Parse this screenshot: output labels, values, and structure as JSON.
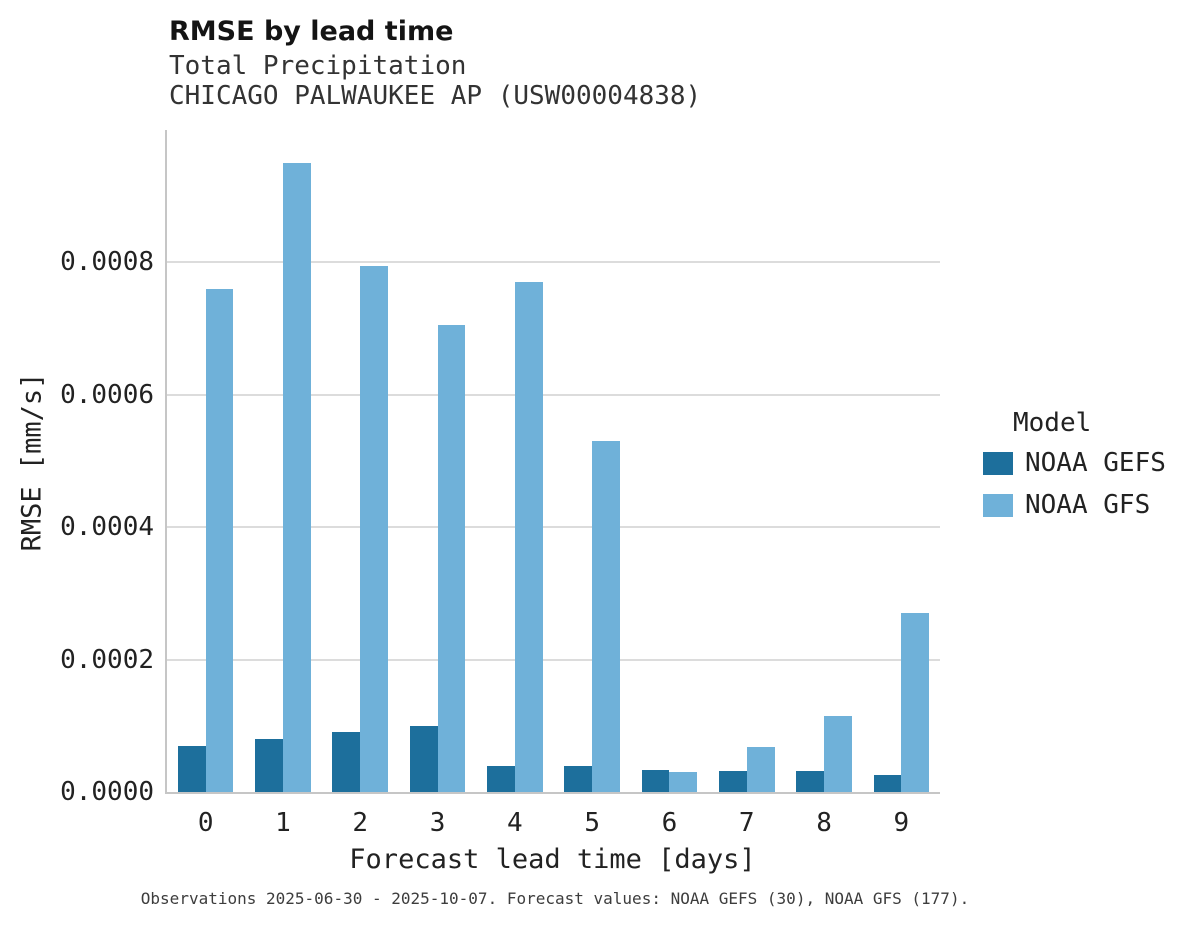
{
  "chart": {
    "title": "RMSE by lead time",
    "subtitle_line1": "Total Precipitation",
    "subtitle_line2": "CHICAGO PALWAUKEE AP (USW00004838)",
    "xlabel": "Forecast lead time [days]",
    "ylabel": "RMSE [mm/s]",
    "legend_title": "Model",
    "caption": "Observations 2025-06-30 - 2025-10-07. Forecast values: NOAA GEFS (30), NOAA GFS (177)."
  },
  "chart_data": {
    "type": "bar",
    "title": "RMSE by lead time",
    "subtitle": "Total Precipitation — CHICAGO PALWAUKEE AP (USW00004838)",
    "xlabel": "Forecast lead time [days]",
    "ylabel": "RMSE [mm/s]",
    "categories": [
      "0",
      "1",
      "2",
      "3",
      "4",
      "5",
      "6",
      "7",
      "8",
      "9"
    ],
    "series": [
      {
        "name": "NOAA GEFS",
        "color": "#1d6f9c",
        "values": [
          7e-05,
          8e-05,
          9e-05,
          0.0001,
          3.9e-05,
          3.9e-05,
          3.3e-05,
          3.1e-05,
          3.1e-05,
          2.5e-05
        ]
      },
      {
        "name": "NOAA GFS",
        "color": "#6fb1d9",
        "values": [
          0.00076,
          0.00095,
          0.000795,
          0.000705,
          0.00077,
          0.00053,
          3e-05,
          6.8e-05,
          0.000115,
          0.00027
        ]
      }
    ],
    "ylim": [
      0,
      0.001
    ],
    "yticks": [
      0.0,
      0.0002,
      0.0004,
      0.0006,
      0.0008
    ],
    "ytick_decimals": 4,
    "grid": "horizontal",
    "legend_title": "Model",
    "legend_position": "right"
  }
}
